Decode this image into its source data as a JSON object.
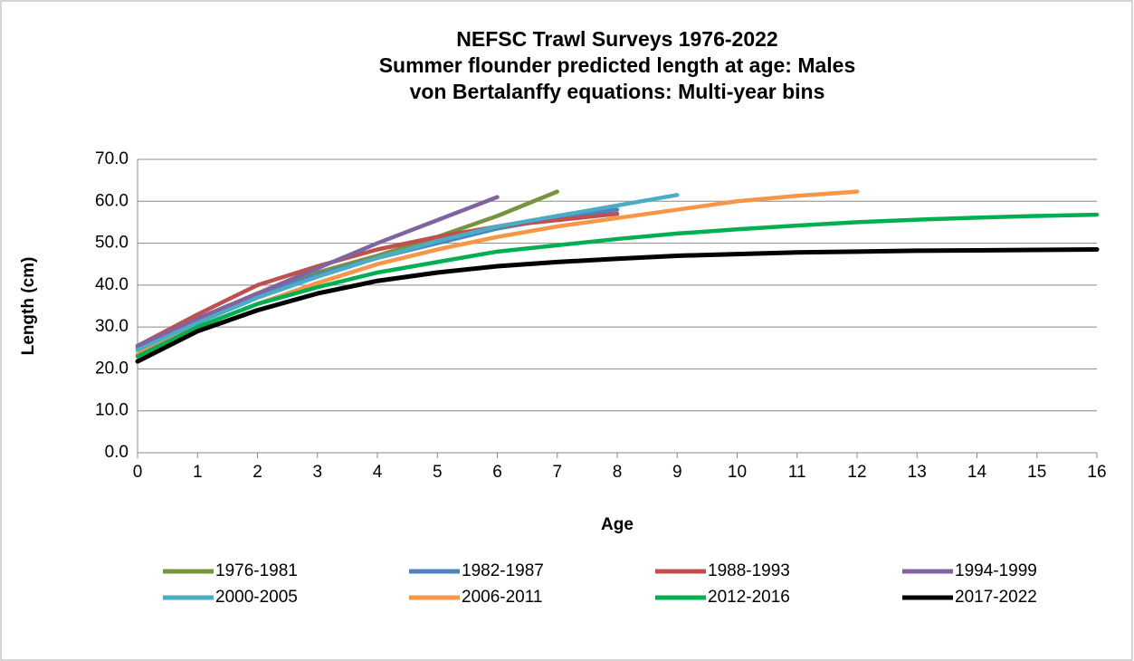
{
  "chart_data": {
    "type": "line",
    "title": [
      "NEFSC Trawl Surveys 1976-2022",
      "Summer flounder predicted length at age: Males",
      "von Bertalanffy equations: Multi-year bins"
    ],
    "x_label": "Age",
    "y_label": "Length (cm)",
    "x": [
      0,
      1,
      2,
      3,
      4,
      5,
      6,
      7,
      8,
      9,
      10,
      11,
      12,
      13,
      14,
      15,
      16
    ],
    "xlim": [
      0,
      16
    ],
    "xticks": [
      0,
      1,
      2,
      3,
      4,
      5,
      6,
      7,
      8,
      9,
      10,
      11,
      12,
      13,
      14,
      15,
      16
    ],
    "ylim": [
      0,
      70
    ],
    "yticks": [
      {
        "value": 0,
        "label": "0.0"
      },
      {
        "value": 10,
        "label": "10.0"
      },
      {
        "value": 20,
        "label": "20.0"
      },
      {
        "value": 30,
        "label": "30.0"
      },
      {
        "value": 40,
        "label": "40.0"
      },
      {
        "value": 50,
        "label": "50.0"
      },
      {
        "value": 60,
        "label": "60.0"
      },
      {
        "value": 70,
        "label": "70.0"
      }
    ],
    "grid": true,
    "legend": "bottom",
    "series": [
      {
        "name": "1976-1981",
        "color": "#77933c",
        "values": [
          25.5,
          32,
          38,
          43,
          47,
          51.5,
          56.5,
          62.3,
          null,
          null,
          null,
          null,
          null,
          null,
          null,
          null,
          null
        ]
      },
      {
        "name": "1982-1987",
        "color": "#4f81bd",
        "values": [
          25,
          31.8,
          37.5,
          42.5,
          46.5,
          50,
          53.5,
          56,
          58,
          null,
          null,
          null,
          null,
          null,
          null,
          null,
          null
        ]
      },
      {
        "name": "1988-1993",
        "color": "#c0504d",
        "values": [
          25.5,
          33,
          40,
          44.5,
          48.5,
          51.5,
          54,
          55.5,
          57,
          null,
          null,
          null,
          null,
          null,
          null,
          null,
          null
        ]
      },
      {
        "name": "1994-1999",
        "color": "#8064a2",
        "values": [
          25.5,
          32,
          38,
          44,
          50,
          55.5,
          61,
          null,
          null,
          null,
          null,
          null,
          null,
          null,
          null,
          null,
          null
        ]
      },
      {
        "name": "2000-2005",
        "color": "#4bacc6",
        "values": [
          24.5,
          31,
          37,
          42,
          46.5,
          50.5,
          54,
          56.5,
          59,
          61.5,
          null,
          null,
          null,
          null,
          null,
          null,
          null
        ]
      },
      {
        "name": "2006-2011",
        "color": "#f79646",
        "values": [
          23.5,
          30,
          35.5,
          40.5,
          45,
          48.5,
          51.5,
          54,
          56,
          58,
          60,
          61.3,
          62.3,
          null,
          null,
          null,
          null
        ]
      },
      {
        "name": "2012-2016",
        "color": "#00b050",
        "values": [
          23,
          30,
          35.5,
          39.5,
          43,
          45.5,
          48,
          49.5,
          51,
          52.3,
          53.3,
          54.2,
          55,
          55.6,
          56.1,
          56.5,
          56.8
        ]
      },
      {
        "name": "2017-2022",
        "color": "#000000",
        "values": [
          21.8,
          29,
          34,
          38,
          41,
          43,
          44.5,
          45.5,
          46.3,
          47,
          47.4,
          47.8,
          48,
          48.2,
          48.3,
          48.4,
          48.5
        ]
      }
    ]
  }
}
